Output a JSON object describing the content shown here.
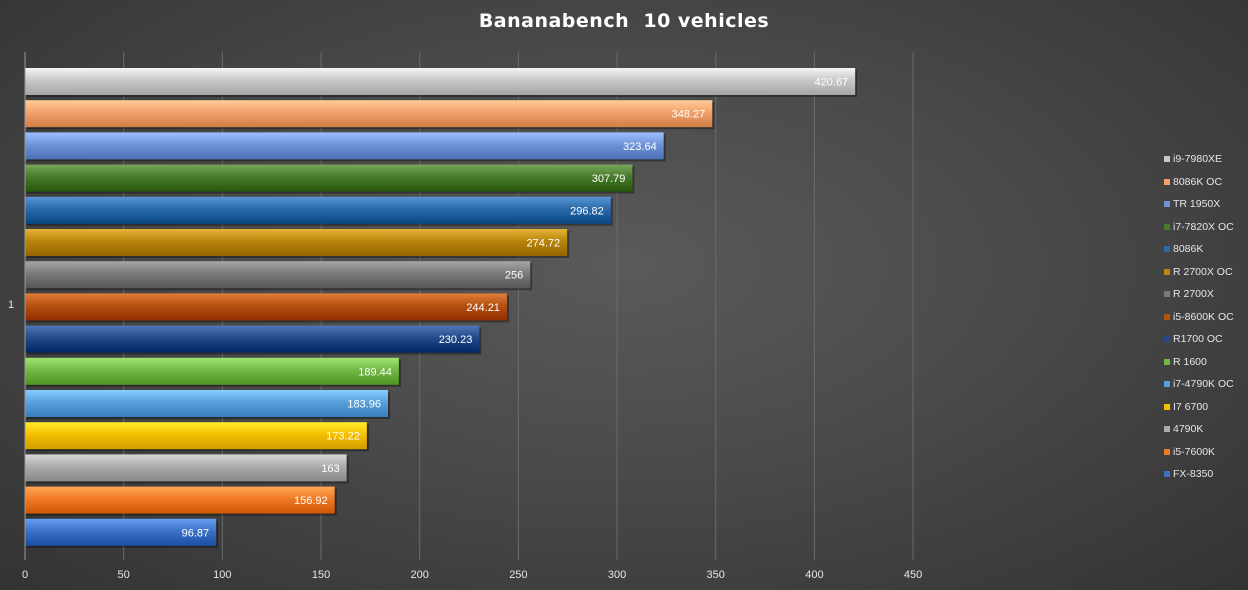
{
  "chart_data": {
    "type": "bar",
    "orientation": "horizontal",
    "title": "Bananabench  10 vehicles",
    "category_label": "1",
    "xlim": [
      0,
      450
    ],
    "xticks": [
      0,
      50,
      100,
      150,
      200,
      250,
      300,
      350,
      400,
      450
    ],
    "grid": true,
    "legend_position": "right",
    "series": [
      {
        "name": "i9-7980XE",
        "value": 420.67,
        "label": "420.67",
        "color": "#c8c8c8"
      },
      {
        "name": "8086K OC",
        "value": 348.27,
        "label": "348.27",
        "color": "#f4a06a"
      },
      {
        "name": "TR 1950X",
        "value": 323.64,
        "label": "323.64",
        "color": "#6f93d8"
      },
      {
        "name": "i7-7820X OC",
        "value": 307.79,
        "label": "307.79",
        "color": "#4a7a2c"
      },
      {
        "name": "8086K",
        "value": 296.82,
        "label": "296.82",
        "color": "#2a6aa8"
      },
      {
        "name": "R 2700X OC",
        "value": 274.72,
        "label": "274.72",
        "color": "#b8860b"
      },
      {
        "name": "R 2700X",
        "value": 256,
        "label": "256",
        "color": "#7a7a7a"
      },
      {
        "name": "i5-8600K OC",
        "value": 244.21,
        "label": "244.21",
        "color": "#b5500f"
      },
      {
        "name": "R1700 OC",
        "value": 230.23,
        "label": "230.23",
        "color": "#244a8a"
      },
      {
        "name": "R 1600",
        "value": 189.44,
        "label": "189.44",
        "color": "#72b845"
      },
      {
        "name": "i7-4790K OC",
        "value": 183.96,
        "label": "183.96",
        "color": "#5aa0dc"
      },
      {
        "name": "I7 6700",
        "value": 173.22,
        "label": "173.22",
        "color": "#f5c000"
      },
      {
        "name": "4790K",
        "value": 163,
        "label": "163",
        "color": "#ababab"
      },
      {
        "name": "i5-7600K",
        "value": 156.92,
        "label": "156.92",
        "color": "#f07a26"
      },
      {
        "name": "FX-8350",
        "value": 96.87,
        "label": "96.87",
        "color": "#3b72c8"
      }
    ]
  }
}
